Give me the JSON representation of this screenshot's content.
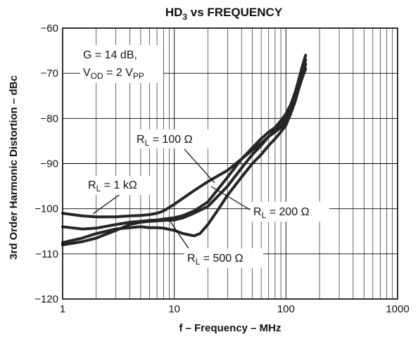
{
  "chart_data": {
    "type": "line",
    "title_main": "HD",
    "title_sub": "3",
    "title_rest": " vs FREQUENCY",
    "xlabel": "f – Frequency – MHz",
    "ylabel": "3rd Order Harmonic Distortion – dBc",
    "x_scale": "log",
    "xlim": [
      1,
      1000
    ],
    "ylim": [
      -120,
      -60
    ],
    "x_ticks": [
      {
        "value": 1,
        "label": "1"
      },
      {
        "value": 10,
        "label": "10"
      },
      {
        "value": 100,
        "label": "100"
      },
      {
        "value": 1000,
        "label": "1000"
      }
    ],
    "y_ticks": [
      {
        "value": -60,
        "label": "−60"
      },
      {
        "value": -70,
        "label": "−70"
      },
      {
        "value": -80,
        "label": "−80"
      },
      {
        "value": -90,
        "label": "−90"
      },
      {
        "value": -100,
        "label": "−100"
      },
      {
        "value": -110,
        "label": "−110"
      },
      {
        "value": -120,
        "label": "−120"
      }
    ],
    "grid": true,
    "conditions": {
      "line1": "G = 14 dB,",
      "line2_main": "V",
      "line2_sub": "OD",
      "line2_rest": " = 2 V",
      "line2_sub2": "PP"
    },
    "series": [
      {
        "label_main": "R",
        "label_sub": "L",
        "label_rest": " = 100 Ω",
        "x": [
          1,
          1.5,
          2,
          3,
          4,
          5,
          6,
          7,
          8,
          10,
          15,
          20,
          30,
          40,
          50,
          60,
          70,
          80,
          90,
          100,
          110,
          120,
          130,
          140,
          150
        ],
        "y": [
          -101,
          -101.6,
          -101.8,
          -101.8,
          -101.6,
          -101.5,
          -101.3,
          -101,
          -100.5,
          -99,
          -96,
          -94,
          -91.5,
          -89,
          -87,
          -85.5,
          -84,
          -83,
          -82,
          -81,
          -79,
          -76.5,
          -73.5,
          -70.5,
          -67
        ]
      },
      {
        "label_main": "R",
        "label_sub": "L",
        "label_rest": " = 200 Ω",
        "x": [
          1,
          1.5,
          2,
          3,
          4,
          5,
          6,
          7,
          8,
          10,
          12,
          15,
          20,
          30,
          40,
          50,
          60,
          70,
          80,
          90,
          100,
          110,
          120,
          130,
          140,
          150
        ],
        "y": [
          -104,
          -104.5,
          -104.3,
          -103.5,
          -103,
          -102.8,
          -102.6,
          -102.5,
          -102.3,
          -102,
          -101.5,
          -100.5,
          -98.5,
          -93,
          -89,
          -86.5,
          -84.5,
          -83,
          -82,
          -80.5,
          -79,
          -77,
          -74.5,
          -71.5,
          -68.5,
          -66
        ]
      },
      {
        "label_main": "R",
        "label_sub": "L",
        "label_rest": " = 500 Ω",
        "x": [
          1,
          1.5,
          2,
          3,
          4,
          5,
          6,
          7,
          8,
          10,
          12,
          15,
          17,
          20,
          25,
          30,
          40,
          50,
          60,
          70,
          80,
          90,
          100,
          110,
          120,
          130,
          140,
          150
        ],
        "y": [
          -107.5,
          -106.5,
          -105.5,
          -104.5,
          -104.2,
          -104,
          -104.2,
          -104.2,
          -104.3,
          -104.8,
          -105.5,
          -106,
          -105.5,
          -103.5,
          -100,
          -97,
          -93,
          -90,
          -88,
          -86,
          -84.5,
          -83,
          -81.5,
          -79,
          -76,
          -73.5,
          -71,
          -69
        ]
      },
      {
        "label_main": "R",
        "label_sub": "L",
        "label_rest": " = 1 kΩ",
        "x": [
          1,
          1.5,
          2,
          3,
          4,
          5,
          6,
          7,
          8,
          10,
          12,
          15,
          20,
          30,
          40,
          50,
          60,
          70,
          80,
          90,
          100,
          110,
          120,
          130,
          140,
          150
        ],
        "y": [
          -108,
          -107.3,
          -106.5,
          -104.8,
          -103.5,
          -103,
          -102.8,
          -102.7,
          -102.6,
          -102.5,
          -102,
          -101,
          -99.5,
          -95,
          -91,
          -88,
          -86,
          -84,
          -82.5,
          -81.5,
          -80,
          -78,
          -75.5,
          -73,
          -70.5,
          -68
        ]
      }
    ]
  }
}
